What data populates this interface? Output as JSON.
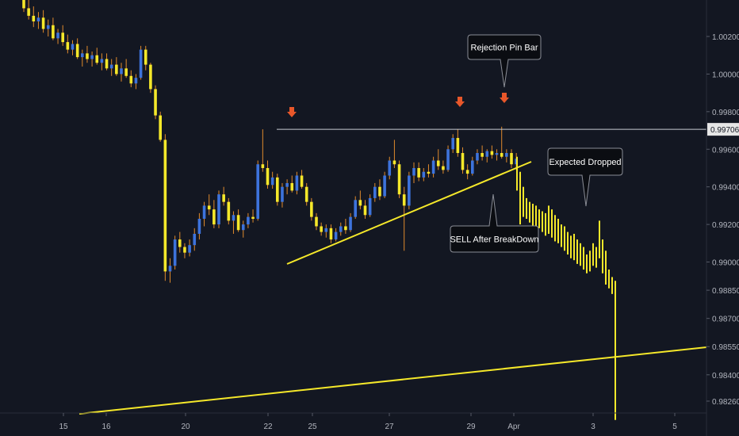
{
  "chart_data": {
    "type": "candlestick",
    "symbol_note": "",
    "y_axis": {
      "ylim": [
        0.9818,
        1.0033
      ],
      "ticks": [
        "1.00200",
        "1.00000",
        "0.99800",
        "0.99600",
        "0.99400",
        "0.99200",
        "0.99000",
        "0.98850",
        "0.98700",
        "0.98550",
        "0.98400",
        "0.98260"
      ],
      "tick_values": [
        1.002,
        1.0,
        0.998,
        0.996,
        0.994,
        0.992,
        0.99,
        0.9885,
        0.987,
        0.9855,
        0.984,
        0.9826
      ]
    },
    "x_axis": {
      "ticks": [
        "15",
        "16",
        "20",
        "22",
        "25",
        "27",
        "29",
        "Apr",
        "3",
        "5"
      ]
    },
    "resistance": {
      "value": 0.99706,
      "label": "0.99706"
    },
    "colors": {
      "background": "#131722",
      "bull": "#3d73dc",
      "bear": "#f5e82a",
      "wick": "#e08a2c",
      "projection": "#f5e82a",
      "trendline": "#f5e82a",
      "resistance_line": "#c8cad2",
      "arrow": "#e8572a",
      "callout_bg": "#0b0d12",
      "callout_border": "#8a8d96",
      "axis_text": "#b2b5be"
    },
    "candles": [
      [
        1.0042,
        1.0046,
        1.0033,
        1.0035
      ],
      [
        1.0035,
        1.004,
        1.0029,
        1.0031
      ],
      [
        1.0031,
        1.0036,
        1.0025,
        1.0028
      ],
      [
        1.0028,
        1.0033,
        1.0024,
        1.003
      ],
      [
        1.003,
        1.0034,
        1.0022,
        1.0024
      ],
      [
        1.0024,
        1.0029,
        1.002,
        1.0026
      ],
      [
        1.0026,
        1.003,
        1.0018,
        1.0019
      ],
      [
        1.0019,
        1.0024,
        1.0016,
        1.0022
      ],
      [
        1.0022,
        1.0026,
        1.0015,
        1.0017
      ],
      [
        1.0017,
        1.0021,
        1.0011,
        1.0013
      ],
      [
        1.0013,
        1.0018,
        1.001,
        1.0016
      ],
      [
        1.0016,
        1.0019,
        1.0008,
        1.0009
      ],
      [
        1.0009,
        1.0013,
        1.0004,
        1.0011
      ],
      [
        1.0011,
        1.0015,
        1.0006,
        1.0008
      ],
      [
        1.0008,
        1.0012,
        1.0004,
        1.001
      ],
      [
        1.001,
        1.0014,
        1.0005,
        1.0006
      ],
      [
        1.0006,
        1.0011,
        1.0002,
        1.0008
      ],
      [
        1.0008,
        1.0011,
        1.0002,
        1.0003
      ],
      [
        1.0003,
        1.0008,
        0.9999,
        1.0005
      ],
      [
        1.0005,
        1.0009,
        0.9999,
        1.0
      ],
      [
        1.0,
        1.0006,
        0.9996,
        1.0003
      ],
      [
        1.0003,
        1.0008,
        0.9998,
        0.9999
      ],
      [
        0.9999,
        1.0002,
        0.9993,
        0.9995
      ],
      [
        0.9995,
        1.0,
        0.9992,
        0.9998
      ],
      [
        0.9998,
        1.0015,
        0.9997,
        1.0013
      ],
      [
        1.0013,
        1.0015,
        1.0002,
        1.0005
      ],
      [
        1.0005,
        1.0006,
        0.999,
        0.9992
      ],
      [
        0.9992,
        0.9994,
        0.9976,
        0.9978
      ],
      [
        0.9978,
        0.998,
        0.9964,
        0.9965
      ],
      [
        0.9965,
        0.9968,
        0.989,
        0.9895
      ],
      [
        0.9895,
        0.9902,
        0.9889,
        0.9898
      ],
      [
        0.9898,
        0.9914,
        0.9896,
        0.9912
      ],
      [
        0.9912,
        0.9916,
        0.9905,
        0.9908
      ],
      [
        0.9908,
        0.991,
        0.9902,
        0.9905
      ],
      [
        0.9905,
        0.9912,
        0.9903,
        0.9909
      ],
      [
        0.9909,
        0.9918,
        0.9906,
        0.9915
      ],
      [
        0.9915,
        0.9926,
        0.9912,
        0.9923
      ],
      [
        0.9923,
        0.9932,
        0.9919,
        0.993
      ],
      [
        0.993,
        0.9936,
        0.9925,
        0.9928
      ],
      [
        0.9928,
        0.9933,
        0.9918,
        0.992
      ],
      [
        0.992,
        0.9938,
        0.9918,
        0.9936
      ],
      [
        0.9936,
        0.994,
        0.993,
        0.9932
      ],
      [
        0.9932,
        0.9934,
        0.992,
        0.9922
      ],
      [
        0.9922,
        0.9927,
        0.9915,
        0.9925
      ],
      [
        0.9925,
        0.9928,
        0.9916,
        0.9917
      ],
      [
        0.9917,
        0.9922,
        0.9913,
        0.992
      ],
      [
        0.992,
        0.9926,
        0.9918,
        0.9924
      ],
      [
        0.9924,
        0.9928,
        0.9921,
        0.9923
      ],
      [
        0.9923,
        0.9954,
        0.9922,
        0.9952
      ],
      [
        0.9952,
        0.99706,
        0.9948,
        0.995
      ],
      [
        0.995,
        0.9954,
        0.9939,
        0.9941
      ],
      [
        0.9941,
        0.9948,
        0.9939,
        0.9945
      ],
      [
        0.9945,
        0.9947,
        0.993,
        0.9932
      ],
      [
        0.9932,
        0.9942,
        0.9929,
        0.994
      ],
      [
        0.994,
        0.9944,
        0.9936,
        0.9942
      ],
      [
        0.9942,
        0.9946,
        0.9937,
        0.9938
      ],
      [
        0.9938,
        0.9948,
        0.9936,
        0.9946
      ],
      [
        0.9946,
        0.9949,
        0.9939,
        0.994
      ],
      [
        0.994,
        0.9942,
        0.993,
        0.9932
      ],
      [
        0.9932,
        0.9934,
        0.9922,
        0.9924
      ],
      [
        0.9924,
        0.9926,
        0.9917,
        0.9919
      ],
      [
        0.9919,
        0.9921,
        0.9914,
        0.9916
      ],
      [
        0.9916,
        0.992,
        0.9913,
        0.9918
      ],
      [
        0.9918,
        0.992,
        0.991,
        0.9912
      ],
      [
        0.9912,
        0.9918,
        0.9911,
        0.9916
      ],
      [
        0.9916,
        0.9921,
        0.9914,
        0.9919
      ],
      [
        0.9919,
        0.9923,
        0.9915,
        0.9917
      ],
      [
        0.9917,
        0.9926,
        0.9916,
        0.9924
      ],
      [
        0.9924,
        0.9935,
        0.9923,
        0.9933
      ],
      [
        0.9933,
        0.9938,
        0.9928,
        0.993
      ],
      [
        0.993,
        0.9933,
        0.9923,
        0.9925
      ],
      [
        0.9925,
        0.9936,
        0.9924,
        0.9934
      ],
      [
        0.9934,
        0.9942,
        0.9932,
        0.994
      ],
      [
        0.994,
        0.9944,
        0.9933,
        0.9935
      ],
      [
        0.9935,
        0.9948,
        0.9934,
        0.9946
      ],
      [
        0.9946,
        0.9956,
        0.9944,
        0.9954
      ],
      [
        0.9954,
        0.9965,
        0.995,
        0.9952
      ],
      [
        0.9952,
        0.9954,
        0.9934,
        0.9936
      ],
      [
        0.9936,
        0.994,
        0.9906,
        0.993
      ],
      [
        0.993,
        0.9948,
        0.9928,
        0.9946
      ],
      [
        0.9946,
        0.9953,
        0.9942,
        0.995
      ],
      [
        0.995,
        0.9953,
        0.9943,
        0.9945
      ],
      [
        0.9945,
        0.995,
        0.9943,
        0.9948
      ],
      [
        0.9948,
        0.9952,
        0.9945,
        0.9947
      ],
      [
        0.9947,
        0.9956,
        0.9945,
        0.9954
      ],
      [
        0.9954,
        0.996,
        0.9949,
        0.9951
      ],
      [
        0.9951,
        0.9954,
        0.9947,
        0.9949
      ],
      [
        0.9949,
        0.9962,
        0.9948,
        0.996
      ],
      [
        0.996,
        0.9968,
        0.9958,
        0.9966
      ],
      [
        0.9966,
        0.99706,
        0.9956,
        0.9958
      ],
      [
        0.9958,
        0.9961,
        0.9947,
        0.9949
      ],
      [
        0.9949,
        0.9952,
        0.9944,
        0.9947
      ],
      [
        0.9947,
        0.9956,
        0.9946,
        0.9954
      ],
      [
        0.9954,
        0.996,
        0.9952,
        0.9958
      ],
      [
        0.9958,
        0.9962,
        0.9954,
        0.9956
      ],
      [
        0.9956,
        0.996,
        0.9953,
        0.9959
      ],
      [
        0.9959,
        0.9962,
        0.9955,
        0.9957
      ],
      [
        0.9957,
        0.996,
        0.9954,
        0.9958
      ],
      [
        0.9958,
        0.9972,
        0.9955,
        0.9956
      ],
      [
        0.9956,
        0.996,
        0.9953,
        0.9958
      ],
      [
        0.9958,
        0.996,
        0.995,
        0.9952
      ],
      [
        0.9952,
        0.9958,
        0.9949,
        0.9955
      ]
    ],
    "projection_bars": [
      [
        0.9956,
        0.9938
      ],
      [
        0.9948,
        0.992
      ],
      [
        0.994,
        0.9924
      ],
      [
        0.9934,
        0.9923
      ],
      [
        0.9932,
        0.9921
      ],
      [
        0.9931,
        0.9919
      ],
      [
        0.993,
        0.9917
      ],
      [
        0.9928,
        0.9918
      ],
      [
        0.9927,
        0.9916
      ],
      [
        0.9926,
        0.9914
      ],
      [
        0.993,
        0.9915
      ],
      [
        0.9928,
        0.9913
      ],
      [
        0.9925,
        0.9911
      ],
      [
        0.9923,
        0.991
      ],
      [
        0.992,
        0.9908
      ],
      [
        0.9919,
        0.9906
      ],
      [
        0.9916,
        0.9904
      ],
      [
        0.9914,
        0.9902
      ],
      [
        0.9915,
        0.9901
      ],
      [
        0.9912,
        0.9899
      ],
      [
        0.991,
        0.9898
      ],
      [
        0.9908,
        0.9896
      ],
      [
        0.9904,
        0.9894
      ],
      [
        0.9906,
        0.9895
      ],
      [
        0.991,
        0.9898
      ],
      [
        0.9908,
        0.9897
      ],
      [
        0.9922,
        0.9902
      ],
      [
        0.9912,
        0.9894
      ],
      [
        0.9906,
        0.9888
      ],
      [
        0.9896,
        0.9886
      ],
      [
        0.9892,
        0.9883
      ],
      [
        0.989,
        0.9816
      ]
    ],
    "annotations": [
      {
        "text": "Rejection Pin Bar"
      },
      {
        "text": "Expected Dropped"
      },
      {
        "text": "SELL After BreakDown"
      }
    ]
  }
}
